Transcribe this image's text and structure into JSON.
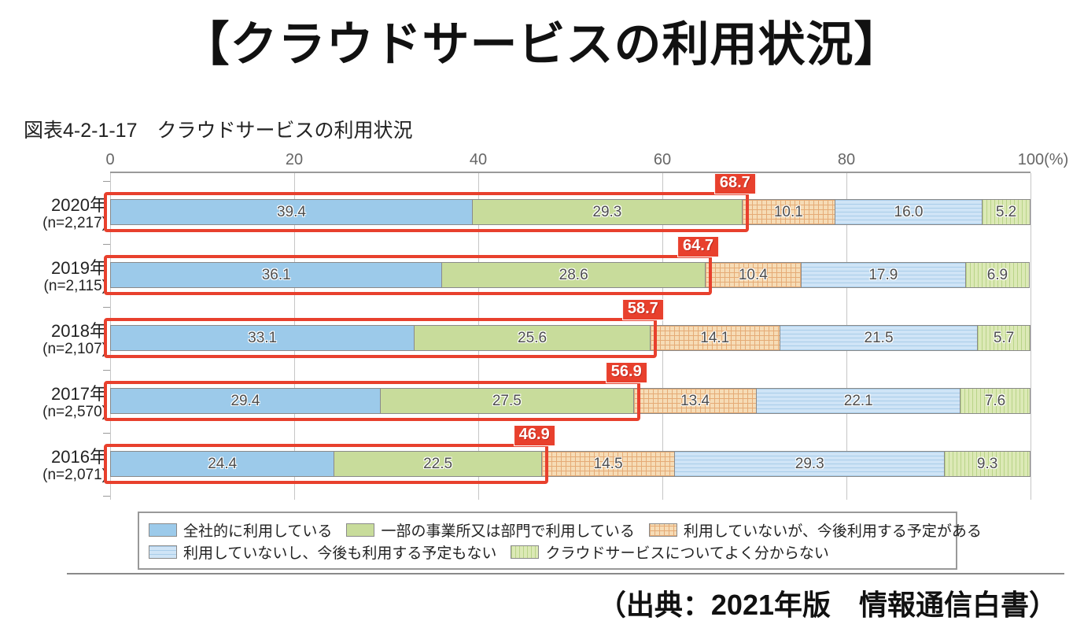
{
  "page": {
    "title": "【クラウドサービスの利用状況】",
    "figure_caption": "図表4-2-1-17　クラウドサービスの利用状況",
    "source": "（出典：2021年版　情報通信白書）"
  },
  "chart_data": {
    "type": "bar",
    "orientation": "horizontal",
    "stacked": true,
    "unit": "%",
    "axis": {
      "min": 0,
      "max": 100,
      "tick_labels": [
        "0",
        "20",
        "40",
        "60",
        "80",
        "100(%)"
      ],
      "tick_values": [
        0,
        20,
        40,
        60,
        80,
        100
      ],
      "grid": true
    },
    "legend": [
      {
        "label": "全社的に利用している",
        "pattern": "blue"
      },
      {
        "label": "一部の事業所又は部門で利用している",
        "pattern": "green"
      },
      {
        "label": "利用していないが、今後利用する予定がある",
        "pattern": "orange-cross"
      },
      {
        "label": "利用していないし、今後も利用する予定もない",
        "pattern": "lightblue-h"
      },
      {
        "label": "クラウドサービスについてよく分からない",
        "pattern": "lightgreen-v"
      }
    ],
    "rows": [
      {
        "year": "2020年",
        "n": "(n=2,217)",
        "values": [
          39.4,
          29.3,
          10.1,
          16.0,
          5.2
        ],
        "value_labels": [
          "39.4",
          "29.3",
          "10.1",
          "16.0",
          "5.2"
        ],
        "highlight_sum": 68.7,
        "highlight_label": "68.7"
      },
      {
        "year": "2019年",
        "n": "(n=2,115)",
        "values": [
          36.1,
          28.6,
          10.4,
          17.9,
          6.9
        ],
        "value_labels": [
          "36.1",
          "28.6",
          "10.4",
          "17.9",
          "6.9"
        ],
        "highlight_sum": 64.7,
        "highlight_label": "64.7"
      },
      {
        "year": "2018年",
        "n": "(n=2,107)",
        "values": [
          33.1,
          25.6,
          14.1,
          21.5,
          5.7
        ],
        "value_labels": [
          "33.1",
          "25.6",
          "14.1",
          "21.5",
          "5.7"
        ],
        "highlight_sum": 58.7,
        "highlight_label": "58.7"
      },
      {
        "year": "2017年",
        "n": "(n=2,570)",
        "values": [
          29.4,
          27.5,
          13.4,
          22.1,
          7.6
        ],
        "value_labels": [
          "29.4",
          "27.5",
          "13.4",
          "22.1",
          "7.6"
        ],
        "highlight_sum": 56.9,
        "highlight_label": "56.9"
      },
      {
        "year": "2016年",
        "n": "(n=2,071)",
        "values": [
          24.4,
          22.5,
          14.5,
          29.3,
          9.3
        ],
        "value_labels": [
          "24.4",
          "22.5",
          "14.5",
          "29.3",
          "9.3"
        ],
        "highlight_sum": 46.9,
        "highlight_label": "46.9"
      }
    ],
    "colors": {
      "accent_red": "#e8402d",
      "blue": "#9ccaea",
      "green": "#c8dc9b",
      "orange_base": "#f6dcb6",
      "orange_line": "#e5ab76",
      "lightblue_base": "#cfe4f6",
      "lightblue_line": "#a9cde9",
      "lightgreen_base": "#dce9b6",
      "lightgreen_line": "#b9d488",
      "grid": "#c6c6c6",
      "segment_border": "#8a8a8a"
    }
  }
}
